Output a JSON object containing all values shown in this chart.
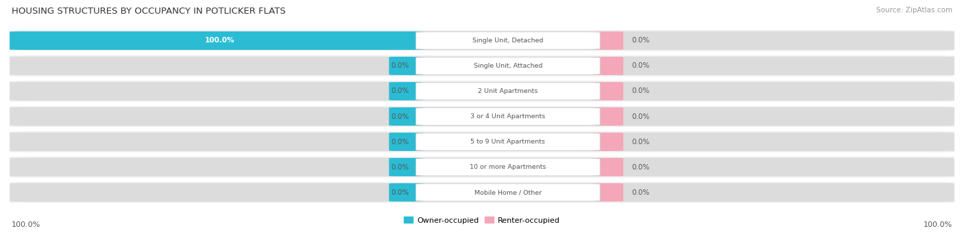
{
  "title": "HOUSING STRUCTURES BY OCCUPANCY IN POTLICKER FLATS",
  "source": "Source: ZipAtlas.com",
  "categories": [
    "Single Unit, Detached",
    "Single Unit, Attached",
    "2 Unit Apartments",
    "3 or 4 Unit Apartments",
    "5 to 9 Unit Apartments",
    "10 or more Apartments",
    "Mobile Home / Other"
  ],
  "owner_values": [
    100.0,
    0.0,
    0.0,
    0.0,
    0.0,
    0.0,
    0.0
  ],
  "renter_values": [
    0.0,
    0.0,
    0.0,
    0.0,
    0.0,
    0.0,
    0.0
  ],
  "owner_color": "#2BBCD4",
  "renter_color": "#F4A7B9",
  "bar_bg_color": "#DCDCDC",
  "row_bg_color": "#EFEFEF",
  "row_bg_alt": "#E8E8E8",
  "label_color": "#555555",
  "title_color": "#333333",
  "source_color": "#999999",
  "total": 100.0,
  "left_axis_label": "100.0%",
  "right_axis_label": "100.0%",
  "legend_owner": "Owner-occupied",
  "legend_renter": "Renter-occupied"
}
